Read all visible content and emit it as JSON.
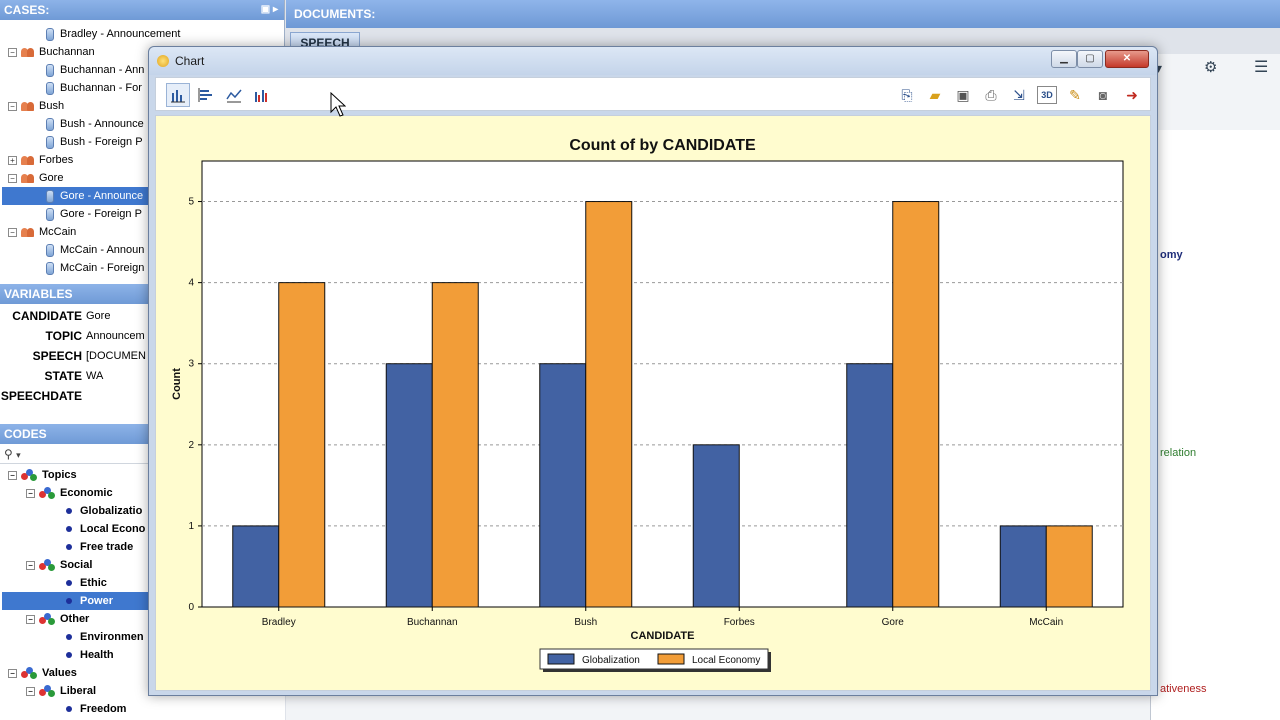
{
  "cases": {
    "title": "CASES:",
    "rows": [
      {
        "label": "Bradley - Announcement",
        "level": 2,
        "type": "doc"
      },
      {
        "label": "Buchannan",
        "level": 1,
        "type": "group"
      },
      {
        "label": "Buchannan - Ann",
        "level": 2,
        "type": "doc"
      },
      {
        "label": "Buchannan - For",
        "level": 2,
        "type": "doc"
      },
      {
        "label": "Bush",
        "level": 1,
        "type": "group"
      },
      {
        "label": "Bush - Announce",
        "level": 2,
        "type": "doc"
      },
      {
        "label": "Bush - Foreign P",
        "level": 2,
        "type": "doc"
      },
      {
        "label": "Forbes",
        "level": 1,
        "type": "group",
        "collapsed": true
      },
      {
        "label": "Gore",
        "level": 1,
        "type": "group"
      },
      {
        "label": "Gore - Announce",
        "level": 2,
        "type": "doc",
        "selected": true
      },
      {
        "label": "Gore - Foreign P",
        "level": 2,
        "type": "doc"
      },
      {
        "label": "McCain",
        "level": 1,
        "type": "group"
      },
      {
        "label": "McCain - Announ",
        "level": 2,
        "type": "doc"
      },
      {
        "label": "McCain - Foreign",
        "level": 2,
        "type": "doc"
      }
    ]
  },
  "variables": {
    "title": "VARIABLES",
    "rows": [
      {
        "key": "CANDIDATE",
        "value": "Gore"
      },
      {
        "key": "TOPIC",
        "value": "Announcem"
      },
      {
        "key": "SPEECH",
        "value": "[DOCUMEN"
      },
      {
        "key": "STATE",
        "value": "WA"
      },
      {
        "key": "SPEECHDATE",
        "value": ""
      }
    ]
  },
  "codes": {
    "title": "CODES",
    "rows": [
      {
        "label": "Topics",
        "level": 1,
        "type": "cat"
      },
      {
        "label": "Economic",
        "level": 2,
        "type": "cat"
      },
      {
        "label": "Globalizatio",
        "level": 3,
        "type": "code"
      },
      {
        "label": "Local Econo",
        "level": 3,
        "type": "code"
      },
      {
        "label": "Free trade",
        "level": 3,
        "type": "code"
      },
      {
        "label": "Social",
        "level": 2,
        "type": "cat"
      },
      {
        "label": "Ethic",
        "level": 3,
        "type": "code"
      },
      {
        "label": "Power",
        "level": 3,
        "type": "code",
        "selected": true
      },
      {
        "label": "Other",
        "level": 2,
        "type": "cat"
      },
      {
        "label": "Environmen",
        "level": 3,
        "type": "code"
      },
      {
        "label": "Health",
        "level": 3,
        "type": "code"
      },
      {
        "label": "Values",
        "level": 1,
        "type": "cat"
      },
      {
        "label": "Liberal",
        "level": 2,
        "type": "cat"
      },
      {
        "label": "Freedom",
        "level": 3,
        "type": "code"
      }
    ]
  },
  "documents": {
    "title": "DOCUMENTS:",
    "tab": "SPEECH",
    "fragments": [
      "omy",
      "relation",
      "ativeness"
    ]
  },
  "chart_window": {
    "title": "Chart",
    "toolbar_left": [
      "bar-chart-icon",
      "horizontal-bar-icon",
      "line-chart-icon",
      "multi-bar-icon"
    ],
    "toolbar_right": [
      "export-icon",
      "open-folder-icon",
      "save-icon",
      "print-icon",
      "copy-icon",
      "3d-icon",
      "edit-icon",
      "camera-icon",
      "exit-icon"
    ]
  },
  "chart_data": {
    "type": "bar",
    "title": "Count of  by CANDIDATE",
    "xlabel": "CANDIDATE",
    "ylabel": "Count",
    "categories": [
      "Bradley",
      "Buchannan",
      "Bush",
      "Forbes",
      "Gore",
      "McCain"
    ],
    "series": [
      {
        "name": "Globalization",
        "color": "#4262a3",
        "values": [
          1,
          3,
          3,
          2,
          3,
          1
        ]
      },
      {
        "name": "Local Economy",
        "color": "#f29d38",
        "values": [
          4,
          4,
          5,
          0,
          5,
          1
        ]
      }
    ],
    "ylim": [
      0,
      5.5
    ],
    "yticks": [
      0,
      1,
      2,
      3,
      4,
      5
    ],
    "grid": true,
    "legend": "bottom"
  }
}
